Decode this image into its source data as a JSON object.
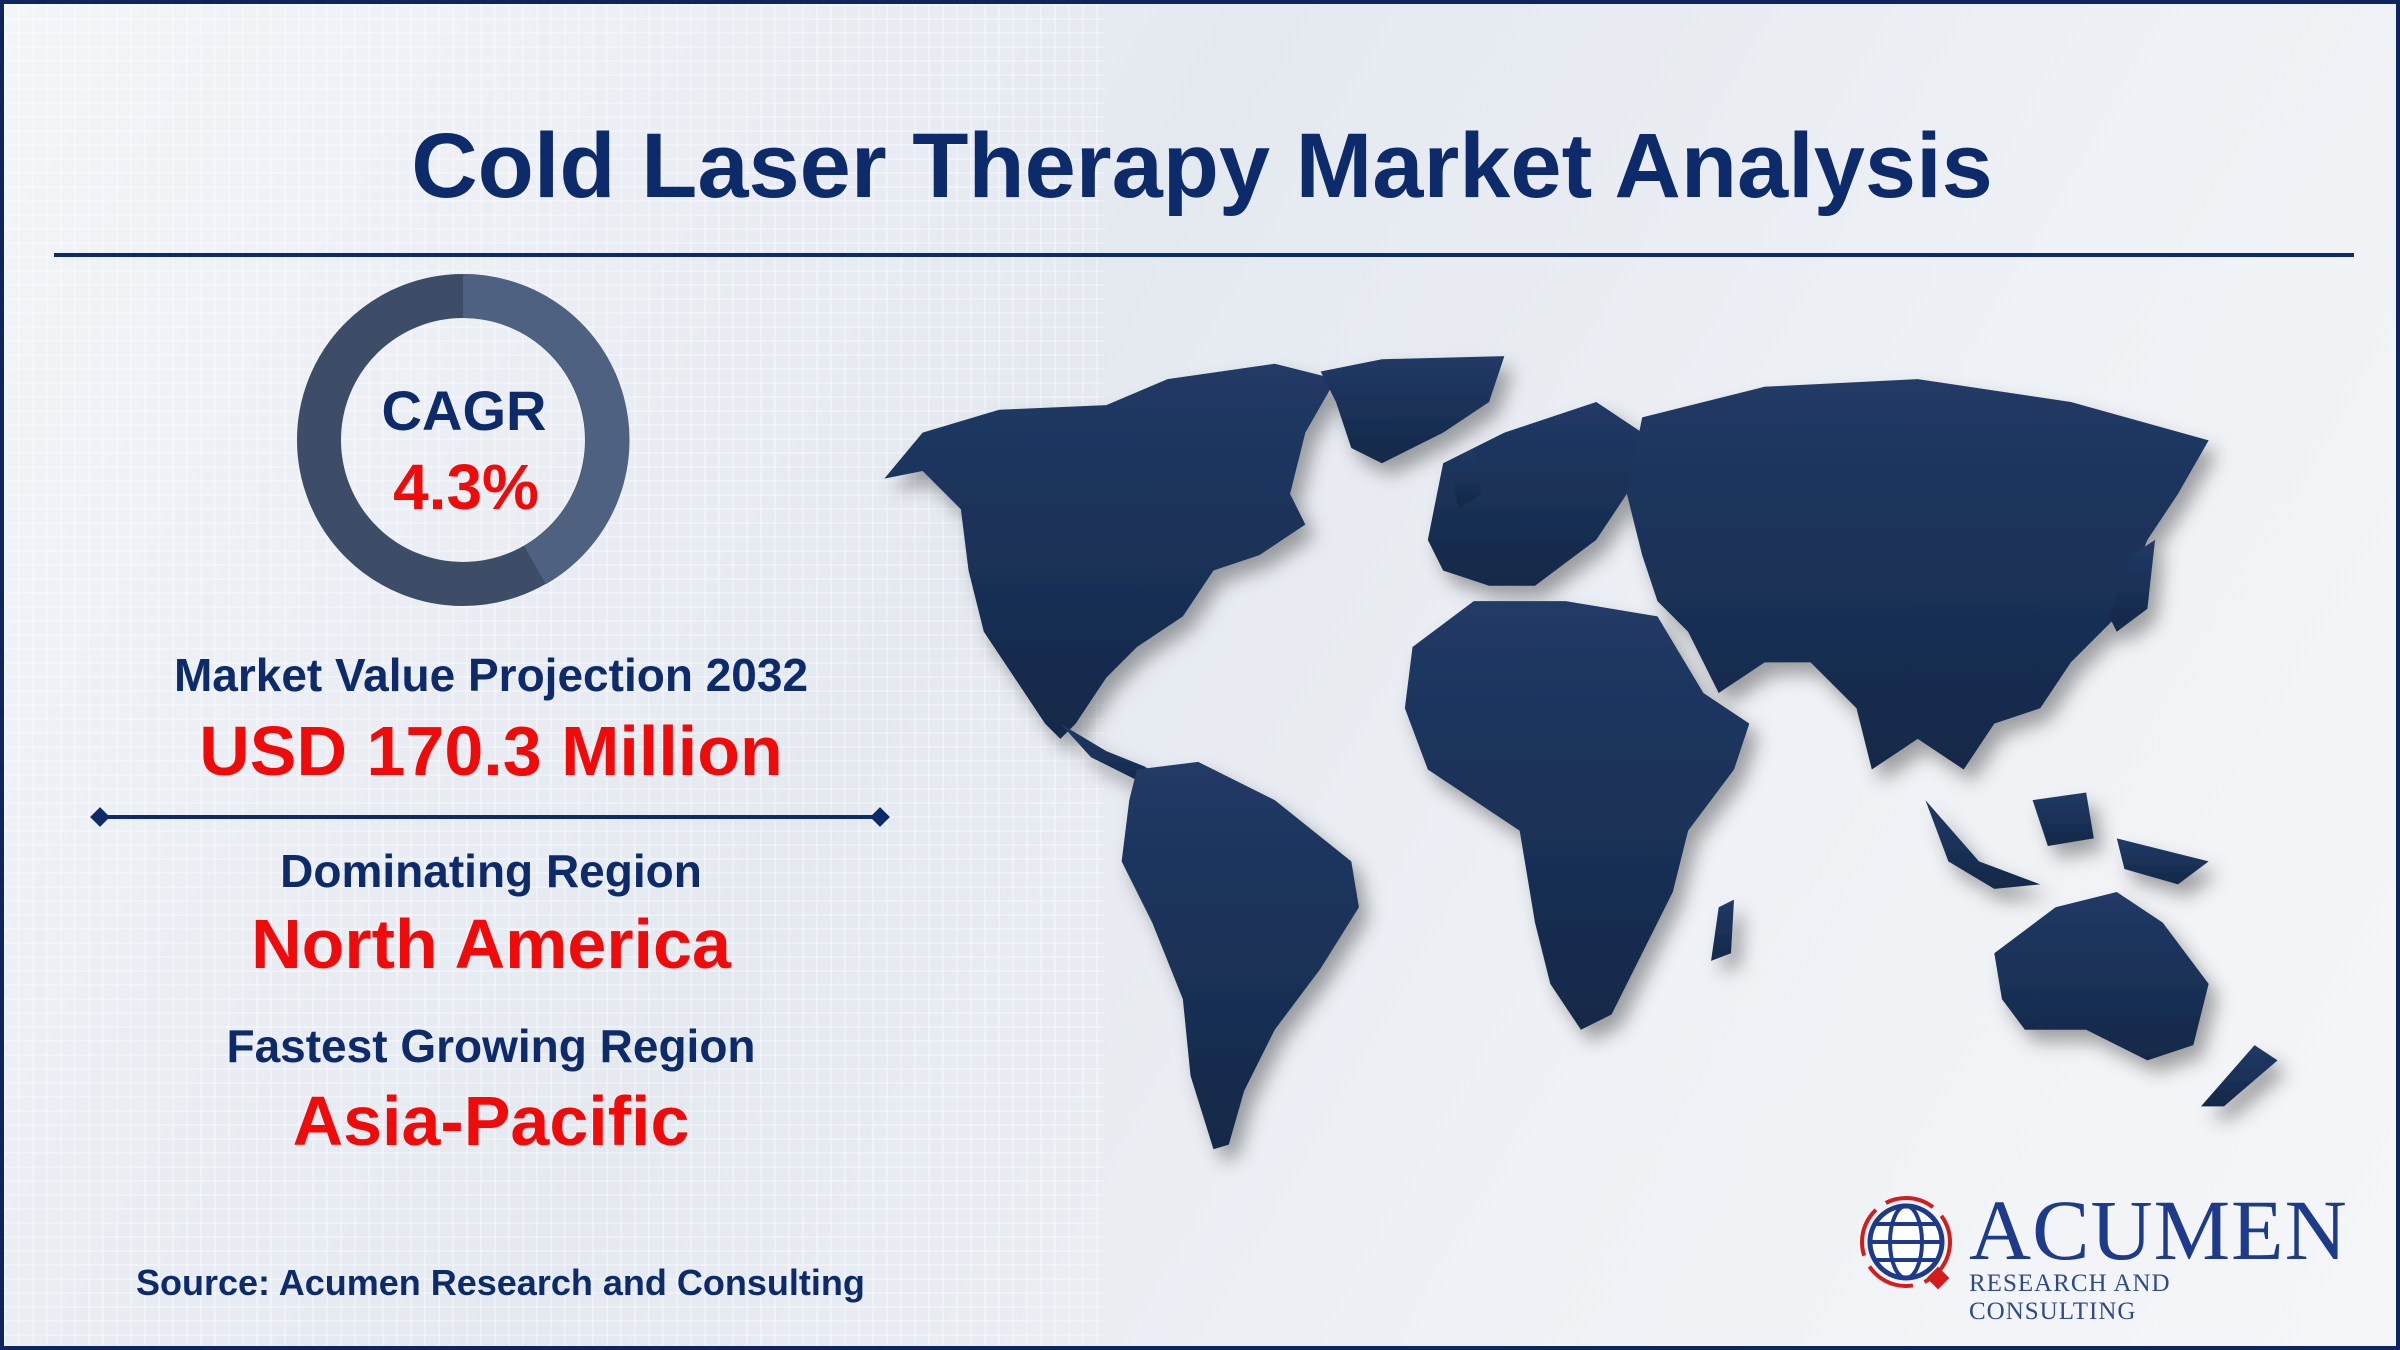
{
  "title": "Cold Laser Therapy Market Analysis",
  "cagr": {
    "label": "CAGR",
    "value": "4.3%"
  },
  "market_value": {
    "label": "Market Value Projection 2032",
    "value": "USD 170.3 Million"
  },
  "dominating_region": {
    "label": "Dominating Region",
    "value": "North America"
  },
  "fastest_region": {
    "label": "Fastest Growing Region",
    "value": "Asia-Pacific"
  },
  "source": "Source: Acumen Research and Consulting",
  "logo": {
    "name": "ACUMEN",
    "tagline": "RESEARCH AND CONSULTING"
  },
  "colors": {
    "navy": "#0d2a6b",
    "accent_red": "#f00a0a",
    "donut_dark": "#3d4d68",
    "donut_light": "#4e6180",
    "map": "#1b3157"
  },
  "icons": {
    "map": "world-map-icon",
    "logo": "globe-logo-icon"
  }
}
